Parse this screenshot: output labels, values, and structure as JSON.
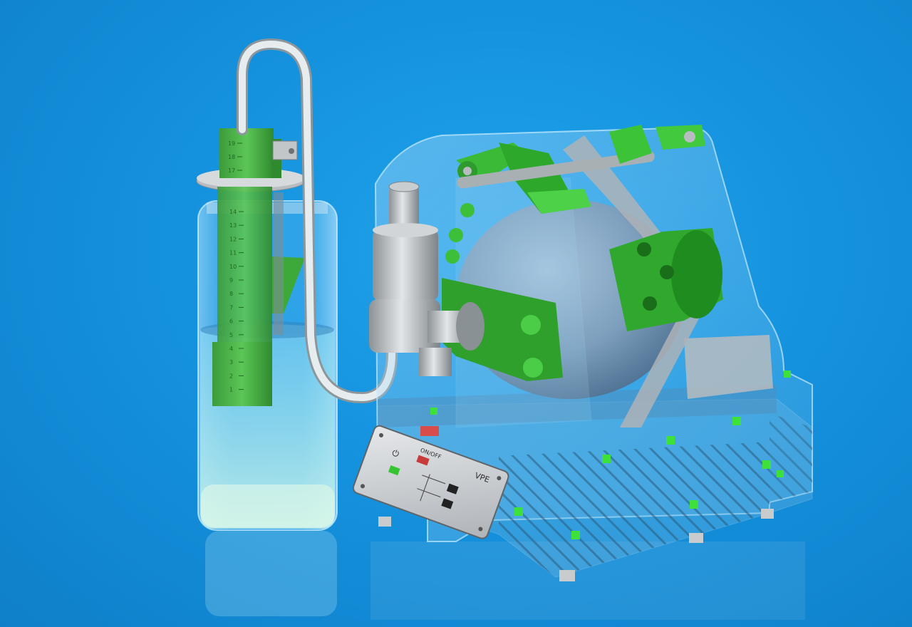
{
  "scene": {
    "description_label": "3D render of ventilator device with water jar",
    "background_color": "#1592de",
    "accent_green": "#3fd03a",
    "acrylic_color": "#9fd2ee"
  },
  "jar": {
    "scale_top": [
      "19",
      "18",
      "17"
    ],
    "scale_main": [
      "14",
      "13",
      "12",
      "11",
      "10",
      "9",
      "8",
      "7",
      "6",
      "5",
      "4",
      "3",
      "2",
      "1"
    ]
  },
  "control_panel": {
    "onoff_label": "ON/OFF",
    "brand_label": "VPE",
    "power_symbol": "⏻"
  }
}
